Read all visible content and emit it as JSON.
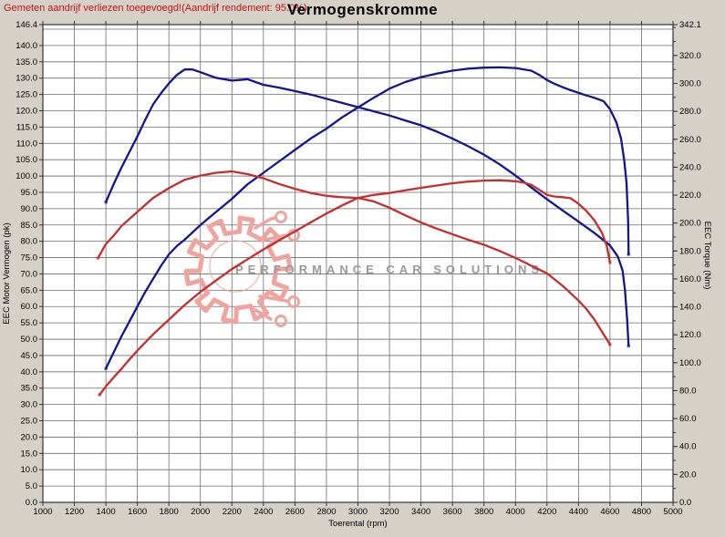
{
  "header": {
    "note": "Gemeten aandrijf verliezen toegevoegd!(Aandrijf rendement: 95.0%)",
    "note_color": "#cc1111",
    "title": "Vermogenskromme"
  },
  "watermark": {
    "text": "PERFORMANCE CAR SOLUTIONS",
    "text_color": "#9a9a9a",
    "gear_color": "#f0a49f",
    "gear_icon": "gear-circuit-logo"
  },
  "chart_data": {
    "type": "line",
    "title": "Vermogenskromme",
    "xlabel": "Toerental (rpm)",
    "ylabel_left": "EEC Motor Vermogen (pk)",
    "ylabel_right": "EEC Torque (Nm)",
    "xlim": [
      1000,
      5000
    ],
    "ylim_left": [
      0,
      146.4
    ],
    "ylim_right": [
      0,
      342.1
    ],
    "grid": true,
    "legend": "none",
    "x_tick_labels": [
      "1000",
      "1200",
      "1400",
      "1600",
      "1800",
      "2000",
      "2200",
      "2400",
      "2600",
      "2800",
      "3000",
      "3200",
      "3400",
      "3600",
      "3800",
      "4000",
      "4200",
      "4400",
      "4600",
      "4800",
      "5000"
    ],
    "y_left_tick_labels": [
      "146.4",
      "140.0",
      "135.0",
      "130.0",
      "125.0",
      "120.0",
      "115.0",
      "110.0",
      "105.0",
      "100.0",
      "95.0",
      "90.0",
      "85.0",
      "80.0",
      "75.0",
      "70.0",
      "65.0",
      "60.0",
      "55.0",
      "50.0",
      "45.0",
      "40.0",
      "35.0",
      "30.0",
      "25.0",
      "20.0",
      "15.0",
      "10.0",
      "5.0",
      "0.0"
    ],
    "y_right_tick_labels": [
      "342.1",
      "320.0",
      "300.0",
      "280.0",
      "260.0",
      "240.0",
      "220.0",
      "200.0",
      "180.0",
      "160.0",
      "140.0",
      "120.0",
      "100.0",
      "80.0",
      "60.0",
      "40.0",
      "20.0",
      "0.0"
    ],
    "series": [
      {
        "name": "power-blue (pk)",
        "axis": "left",
        "unit": "pk",
        "color": "#15158a",
        "peak": {
          "value": 133.3,
          "rpm": 3900
        },
        "points": [
          [
            1400,
            41
          ],
          [
            1450,
            46
          ],
          [
            1500,
            51
          ],
          [
            1550,
            55.5
          ],
          [
            1600,
            60
          ],
          [
            1650,
            64.5
          ],
          [
            1700,
            68.5
          ],
          [
            1750,
            72.5
          ],
          [
            1800,
            76
          ],
          [
            1850,
            78.5
          ],
          [
            1900,
            80.5
          ],
          [
            2000,
            85
          ],
          [
            2100,
            89
          ],
          [
            2200,
            93
          ],
          [
            2300,
            97.5
          ],
          [
            2400,
            101
          ],
          [
            2500,
            104.5
          ],
          [
            2600,
            108
          ],
          [
            2700,
            111.5
          ],
          [
            2800,
            114.5
          ],
          [
            2900,
            118
          ],
          [
            3000,
            121
          ],
          [
            3100,
            124
          ],
          [
            3200,
            126.8
          ],
          [
            3300,
            128.8
          ],
          [
            3400,
            130.3
          ],
          [
            3500,
            131.4
          ],
          [
            3600,
            132.3
          ],
          [
            3700,
            132.9
          ],
          [
            3800,
            133.2
          ],
          [
            3900,
            133.3
          ],
          [
            4000,
            133.1
          ],
          [
            4100,
            132.3
          ],
          [
            4150,
            131
          ],
          [
            4200,
            129.4
          ],
          [
            4250,
            128.2
          ],
          [
            4300,
            127.2
          ],
          [
            4350,
            126.3
          ],
          [
            4400,
            125.5
          ],
          [
            4450,
            124.7
          ],
          [
            4500,
            124
          ],
          [
            4560,
            122.9
          ],
          [
            4600,
            120.5
          ],
          [
            4640,
            116.5
          ],
          [
            4670,
            111.5
          ],
          [
            4690,
            105
          ],
          [
            4705,
            98
          ],
          [
            4715,
            86
          ],
          [
            4718,
            76
          ]
        ]
      },
      {
        "name": "torque-blue (Nm)",
        "axis": "right",
        "unit": "Nm",
        "color": "#15158a",
        "peak": {
          "value": 310,
          "rpm": 1900
        },
        "points": [
          [
            1400,
            215
          ],
          [
            1450,
            228
          ],
          [
            1500,
            240
          ],
          [
            1550,
            251
          ],
          [
            1600,
            262
          ],
          [
            1650,
            274
          ],
          [
            1700,
            285
          ],
          [
            1750,
            293
          ],
          [
            1800,
            300
          ],
          [
            1850,
            306
          ],
          [
            1900,
            310
          ],
          [
            1950,
            310
          ],
          [
            2000,
            308
          ],
          [
            2050,
            306
          ],
          [
            2100,
            304
          ],
          [
            2200,
            302
          ],
          [
            2250,
            302.5
          ],
          [
            2300,
            303
          ],
          [
            2350,
            301
          ],
          [
            2400,
            299
          ],
          [
            2500,
            297
          ],
          [
            2600,
            294.5
          ],
          [
            2700,
            292
          ],
          [
            2800,
            289
          ],
          [
            2900,
            286
          ],
          [
            3000,
            283
          ],
          [
            3100,
            280
          ],
          [
            3200,
            277
          ],
          [
            3300,
            273.5
          ],
          [
            3400,
            270
          ],
          [
            3500,
            265.5
          ],
          [
            3600,
            260.5
          ],
          [
            3700,
            255
          ],
          [
            3800,
            249
          ],
          [
            3900,
            242
          ],
          [
            4000,
            234
          ],
          [
            4100,
            225.5
          ],
          [
            4200,
            217
          ],
          [
            4300,
            209
          ],
          [
            4400,
            201
          ],
          [
            4500,
            193
          ],
          [
            4600,
            184
          ],
          [
            4650,
            176
          ],
          [
            4680,
            166
          ],
          [
            4695,
            152
          ],
          [
            4708,
            132
          ],
          [
            4718,
            112
          ]
        ]
      },
      {
        "name": "power-red (pk)",
        "axis": "left",
        "unit": "pk",
        "color": "#c22f2f",
        "peak": {
          "value": 98.7,
          "rpm": 3900
        },
        "points": [
          [
            1360,
            33
          ],
          [
            1400,
            35.5
          ],
          [
            1450,
            38.3
          ],
          [
            1500,
            41
          ],
          [
            1550,
            43.8
          ],
          [
            1600,
            46.5
          ],
          [
            1700,
            51.5
          ],
          [
            1800,
            56
          ],
          [
            1900,
            60.5
          ],
          [
            2000,
            64.5
          ],
          [
            2100,
            68
          ],
          [
            2200,
            71.5
          ],
          [
            2300,
            74.5
          ],
          [
            2400,
            77.5
          ],
          [
            2500,
            80.3
          ],
          [
            2600,
            83
          ],
          [
            2700,
            85.8
          ],
          [
            2800,
            88.5
          ],
          [
            2900,
            91
          ],
          [
            3000,
            93.3
          ],
          [
            3100,
            94.2
          ],
          [
            3200,
            94.8
          ],
          [
            3300,
            95.6
          ],
          [
            3400,
            96.4
          ],
          [
            3500,
            97.1
          ],
          [
            3600,
            97.8
          ],
          [
            3700,
            98.3
          ],
          [
            3800,
            98.6
          ],
          [
            3900,
            98.7
          ],
          [
            4000,
            98.4
          ],
          [
            4050,
            98
          ],
          [
            4100,
            97.3
          ],
          [
            4150,
            95.8
          ],
          [
            4200,
            94.2
          ],
          [
            4250,
            93.7
          ],
          [
            4300,
            93.5
          ],
          [
            4350,
            93.2
          ],
          [
            4400,
            91.5
          ],
          [
            4450,
            89.3
          ],
          [
            4500,
            86.5
          ],
          [
            4550,
            82.5
          ],
          [
            4580,
            78.5
          ],
          [
            4600,
            73.5
          ]
        ]
      },
      {
        "name": "torque-red (Nm)",
        "axis": "right",
        "unit": "Nm",
        "color": "#c22f2f",
        "peak": {
          "value": 237,
          "rpm": 2200
        },
        "points": [
          [
            1350,
            175
          ],
          [
            1400,
            185
          ],
          [
            1450,
            191
          ],
          [
            1500,
            198
          ],
          [
            1550,
            203
          ],
          [
            1600,
            208
          ],
          [
            1700,
            218
          ],
          [
            1800,
            225
          ],
          [
            1900,
            231
          ],
          [
            2000,
            234
          ],
          [
            2100,
            236
          ],
          [
            2200,
            237
          ],
          [
            2300,
            235
          ],
          [
            2400,
            232
          ],
          [
            2500,
            228
          ],
          [
            2600,
            224.5
          ],
          [
            2700,
            221.5
          ],
          [
            2800,
            219.5
          ],
          [
            2900,
            218.5
          ],
          [
            3000,
            218
          ],
          [
            3100,
            215.5
          ],
          [
            3200,
            211
          ],
          [
            3300,
            205.5
          ],
          [
            3400,
            200.5
          ],
          [
            3500,
            196
          ],
          [
            3600,
            192
          ],
          [
            3700,
            188
          ],
          [
            3800,
            184.5
          ],
          [
            3900,
            180
          ],
          [
            4000,
            175
          ],
          [
            4100,
            169.5
          ],
          [
            4200,
            164
          ],
          [
            4300,
            155
          ],
          [
            4400,
            144.5
          ],
          [
            4450,
            138.5
          ],
          [
            4500,
            131
          ],
          [
            4550,
            122
          ],
          [
            4600,
            113
          ]
        ]
      }
    ],
    "style": {
      "plot_bg": "#ffffff",
      "grid_color": "#6e6e6e",
      "border_color": "#333333",
      "tick_text_color": "#000000"
    }
  }
}
